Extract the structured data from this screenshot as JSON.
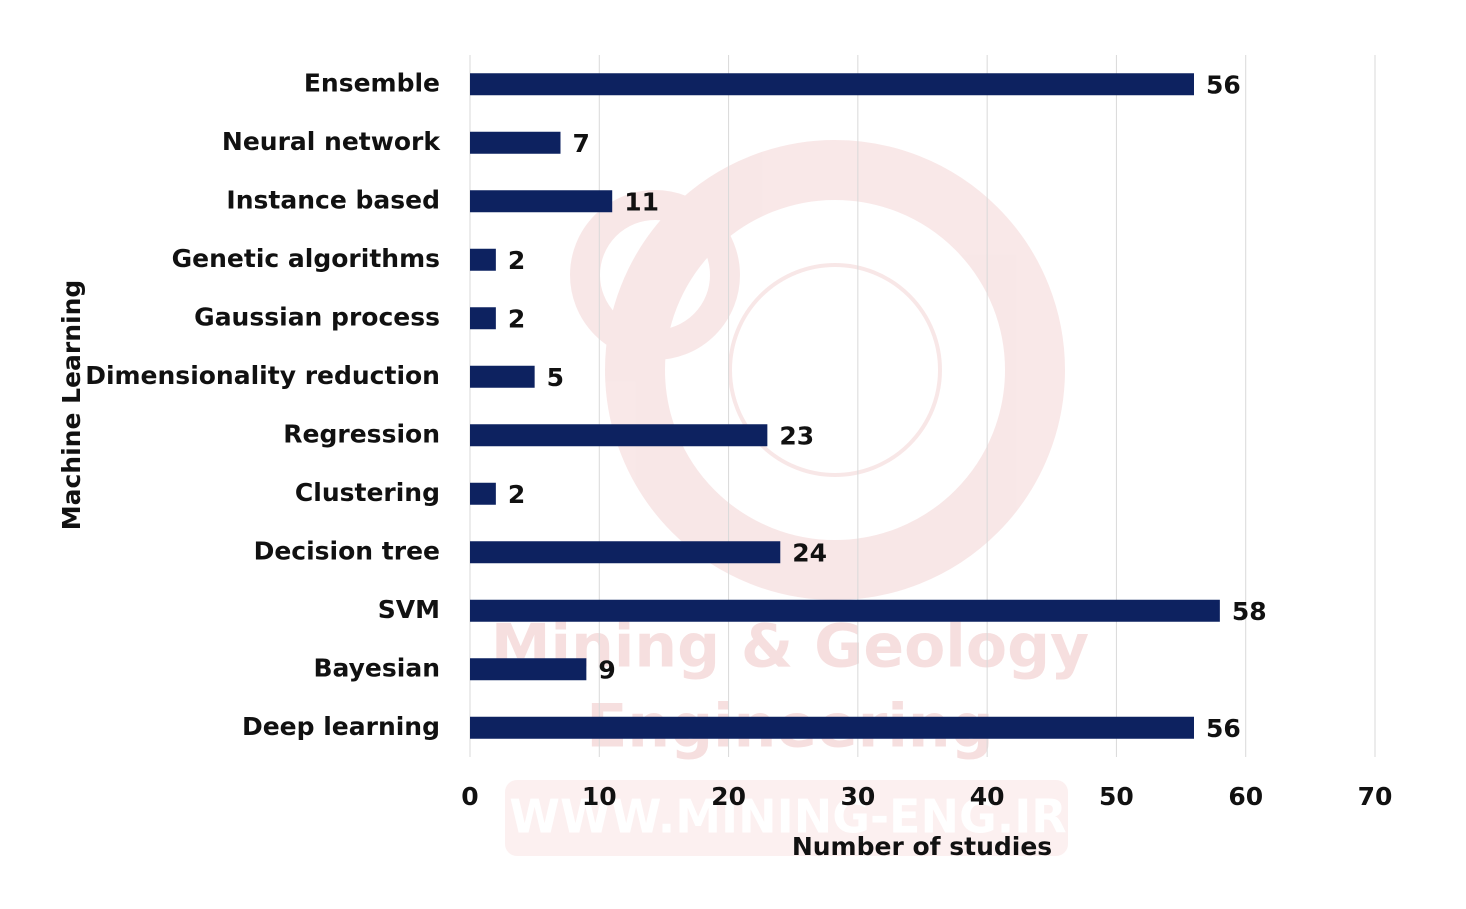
{
  "chart_data": {
    "type": "barh",
    "x_label": "Number of studies",
    "y_label": "Machine Learning",
    "categories": [
      "Ensemble",
      "Neural network",
      "Instance based",
      "Genetic algorithms",
      "Gaussian process",
      "Dimensionality reduction",
      "Regression",
      "Clustering",
      "Decision tree",
      "SVM",
      "Bayesian",
      "Deep learning"
    ],
    "values": [
      56,
      7,
      11,
      2,
      2,
      5,
      23,
      2,
      24,
      58,
      9,
      56
    ],
    "color": "#0d2260",
    "xlim": [
      0,
      70
    ],
    "xticks": [
      0,
      10,
      20,
      30,
      40,
      50,
      60,
      70
    ],
    "grid": true,
    "watermark": [
      "Mining & Geology",
      "Engineering",
      "WWW.MINING-ENG.IR"
    ]
  }
}
